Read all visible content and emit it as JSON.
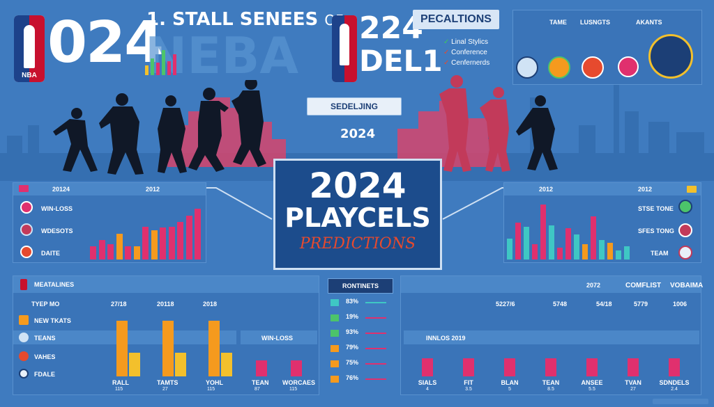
{
  "colors": {
    "bg": "#3f7bbf",
    "panel": "#3a74b8",
    "pink": "#e0306e",
    "orange": "#f59a1e",
    "yellow": "#f3c02c",
    "teal": "#3fc7c4",
    "green": "#4cc46a",
    "red_accent": "#e64a2e",
    "navy": "#1c3f76"
  },
  "header": {
    "logo_left_text": "NBA",
    "big_year_left": "024",
    "headline": "1. STALL SENEES",
    "headline_suffix": "OF",
    "ghost_text": "NEBA",
    "logo_right_text": "",
    "year_right_top": "224",
    "year_right_bottom": "DEL1",
    "predictions_title": "PECALTIONS",
    "legend": [
      {
        "label": "Linal Stylics",
        "color": "#3fc95a"
      },
      {
        "label": "Conference",
        "color": "#e64a2e"
      },
      {
        "label": "Cenfernerds",
        "color": "#e64a2e"
      }
    ],
    "teams_headers": [
      "TAME",
      "LUSNGTS",
      "AKANTS"
    ],
    "team_badges": [
      "hornets-logo-icon",
      "suns-logo-icon",
      "heat-logo-icon",
      "wizards-logo-icon",
      "pacers-logo-icon"
    ]
  },
  "center": {
    "button": "SEDELJING",
    "year": "2024",
    "title_line1": "2024",
    "title_line2": "PLAYCELS",
    "subtitle": "PREDICTIONS"
  },
  "left_panel": {
    "header_cols": [
      "20124",
      "2012"
    ],
    "rows": [
      {
        "icon": "flag-icon",
        "label": "WIN-LOSS"
      },
      {
        "icon": "team-badge-icon",
        "label": "WDESOTS"
      },
      {
        "icon": "team-badge-icon",
        "label": "DAITE"
      }
    ],
    "bars": [
      {
        "v": 0.22,
        "c": "pink"
      },
      {
        "v": 0.32,
        "c": "pink"
      },
      {
        "v": 0.26,
        "c": "pink"
      },
      {
        "v": 0.43,
        "c": "orange"
      },
      {
        "v": 0.22,
        "c": "pink"
      },
      {
        "v": 0.22,
        "c": "orange"
      },
      {
        "v": 0.55,
        "c": "pink"
      },
      {
        "v": 0.49,
        "c": "orange"
      },
      {
        "v": 0.53,
        "c": "pink"
      },
      {
        "v": 0.55,
        "c": "pink"
      },
      {
        "v": 0.63,
        "c": "pink"
      },
      {
        "v": 0.73,
        "c": "pink"
      },
      {
        "v": 0.85,
        "c": "pink"
      }
    ]
  },
  "right_panel": {
    "header_cols": [
      "2012",
      "2012"
    ],
    "rows": [
      {
        "label": "STSE TONE"
      },
      {
        "label": "SFES TONG"
      },
      {
        "label": "TEAM"
      }
    ],
    "bars": [
      {
        "v": 0.35,
        "c": "teal"
      },
      {
        "v": 0.62,
        "c": "pink"
      },
      {
        "v": 0.55,
        "c": "teal"
      },
      {
        "v": 0.25,
        "c": "pink"
      },
      {
        "v": 0.92,
        "c": "pink"
      },
      {
        "v": 0.57,
        "c": "teal"
      },
      {
        "v": 0.2,
        "c": "pink"
      },
      {
        "v": 0.52,
        "c": "pink"
      },
      {
        "v": 0.42,
        "c": "teal"
      },
      {
        "v": 0.25,
        "c": "orange"
      },
      {
        "v": 0.72,
        "c": "pink"
      },
      {
        "v": 0.32,
        "c": "teal"
      },
      {
        "v": 0.28,
        "c": "orange"
      },
      {
        "v": 0.15,
        "c": "teal"
      },
      {
        "v": 0.22,
        "c": "teal"
      }
    ]
  },
  "bottom_left": {
    "title": "MEATALINES",
    "rows": [
      "TYEP MO",
      "NEW TKATS",
      "TEANS",
      "VAHES",
      "FDALE"
    ],
    "cols": [
      {
        "head": "27/18",
        "bottom": "RALL",
        "sub": "115",
        "orange": 0.95,
        "yellow": 0.4
      },
      {
        "head": "20118",
        "bottom": "TAMTS",
        "sub": "27",
        "orange": 0.95,
        "yellow": 0.4
      },
      {
        "head": "2018",
        "bottom": "YOHL",
        "sub": "115",
        "orange": 0.95,
        "yellow": 0.4
      }
    ],
    "winloss": "WIN-LOSS",
    "winloss_cols": [
      {
        "bottom": "TEAN",
        "sub": "87",
        "v": 0.58
      },
      {
        "bottom": "WORCAES",
        "sub": "115",
        "v": 0.58
      }
    ]
  },
  "middle_list": {
    "title": "RONTINETS",
    "items": [
      {
        "pct": "83%",
        "c": "teal"
      },
      {
        "pct": "19%",
        "c": "green"
      },
      {
        "pct": "93%",
        "c": "green"
      },
      {
        "pct": "79%",
        "c": "orange"
      },
      {
        "pct": "75%",
        "c": "orange"
      },
      {
        "pct": "76%",
        "c": "orange"
      }
    ]
  },
  "bottom_right": {
    "header": [
      "2072",
      "COMFLIST",
      "VOBAIMA"
    ],
    "values": [
      "5227/6",
      "5748",
      "54/18",
      "5779",
      "1006"
    ],
    "strip_label": "INNLOS 2019",
    "cols": [
      {
        "bottom": "SIALS",
        "sub": "4",
        "v": 0.65
      },
      {
        "bottom": "FIT",
        "sub": "3.5",
        "v": 0.65
      },
      {
        "bottom": "BLAN",
        "sub": "5",
        "v": 0.65
      },
      {
        "bottom": "TEAN",
        "sub": "8.5",
        "v": 0.65
      },
      {
        "bottom": "ANSEE",
        "sub": "5.5",
        "v": 0.65
      },
      {
        "bottom": "TVAN",
        "sub": "27",
        "v": 0.65
      },
      {
        "bottom": "SDNDELS",
        "sub": "2.4",
        "v": 0.65
      }
    ]
  }
}
